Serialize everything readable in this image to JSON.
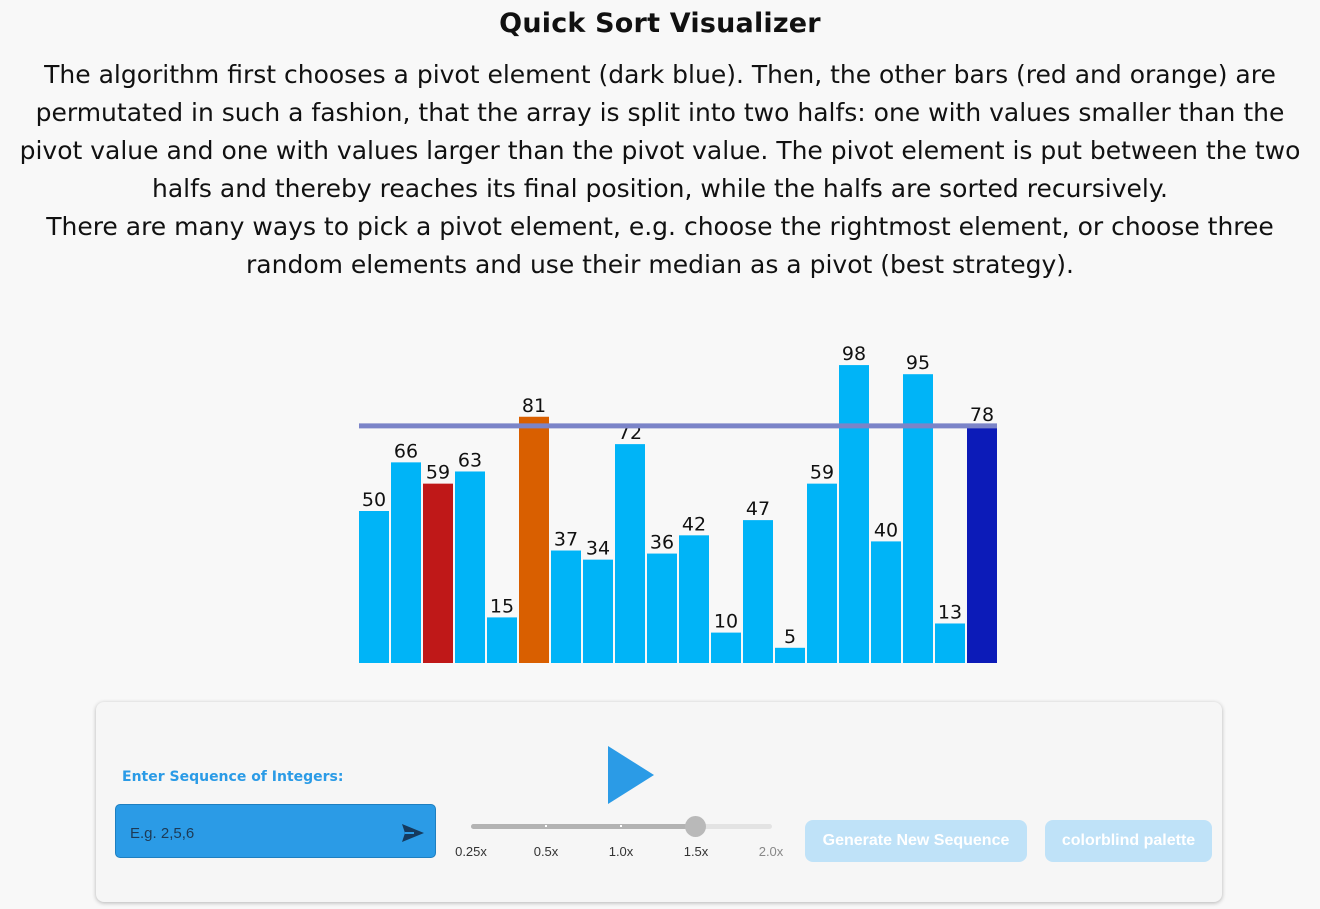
{
  "page": {
    "title": "Quick Sort Visualizer",
    "description": [
      "The algorithm first chooses a pivot element (dark blue). Then, the other bars (red and orange) are permutated in such a fashion, that the array is split into two halfs: one with values smaller than the pivot value and one with values larger than the pivot value. The pivot element is put between the two halfs and thereby reaches its final position, while the halfs are sorted recursively.",
      "There are many ways to pick a pivot element, e.g. choose the rightmost element, or choose three random elements and use their median as a pivot (best strategy)."
    ]
  },
  "chart_data": {
    "type": "bar",
    "values": [
      50,
      66,
      59,
      63,
      15,
      81,
      37,
      34,
      72,
      36,
      42,
      10,
      47,
      5,
      59,
      98,
      40,
      95,
      13,
      78
    ],
    "states": [
      "normal",
      "normal",
      "compare-low",
      "normal",
      "normal",
      "compare-high",
      "normal",
      "normal",
      "normal",
      "normal",
      "normal",
      "normal",
      "normal",
      "normal",
      "normal",
      "normal",
      "normal",
      "normal",
      "normal",
      "pivot"
    ],
    "colors": {
      "normal": "#00b4f7",
      "compare-low": "#bf1818",
      "compare-high": "#d95f00",
      "pivot": "#0c1bb8",
      "pivot_line": "#7b84c8"
    },
    "pivot_value": 78,
    "ylim": [
      0,
      100
    ]
  },
  "controls": {
    "sequence_label": "Enter Sequence of Integers:",
    "sequence_placeholder": "E.g. 2,5,6",
    "speed": {
      "ticks": [
        "0.25x",
        "0.5x",
        "1.0x",
        "1.5x",
        "2.0x"
      ],
      "selected": "1.5x"
    },
    "generate_label": "Generate New Sequence",
    "colorblind_label": "colorblind palette"
  }
}
